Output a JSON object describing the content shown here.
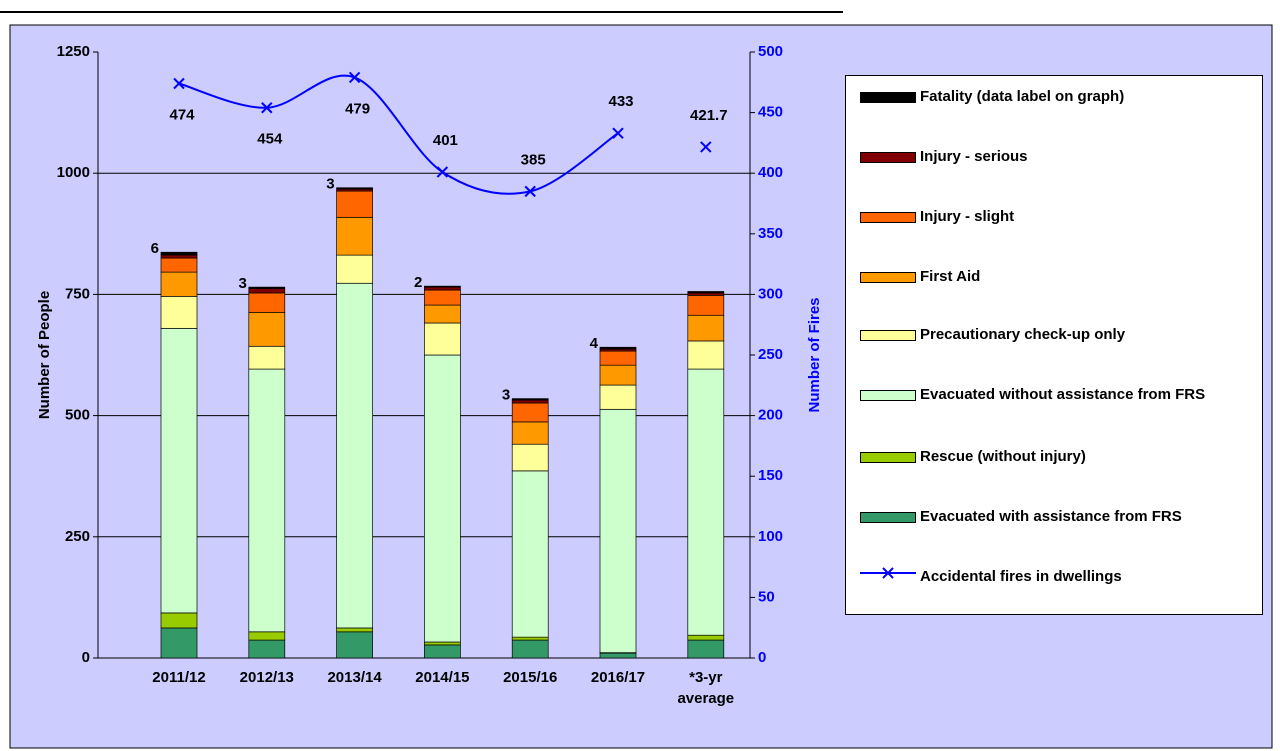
{
  "chart_data": {
    "type": "bar",
    "categories": [
      "2011/12",
      "2012/13",
      "2013/14",
      "2014/15",
      "2015/16",
      "2016/17",
      "*3-yr average"
    ],
    "series": [
      {
        "name": "Fatality (data label on graph)",
        "color": "#000000",
        "values": [
          6,
          3,
          3,
          2,
          3,
          4,
          3
        ],
        "value_labels": [
          "6",
          "3",
          "3",
          "2",
          "3",
          "4",
          null
        ]
      },
      {
        "name": "Injury - serious",
        "color": "#800000",
        "values": [
          6,
          9,
          4,
          6,
          6,
          4,
          5
        ]
      },
      {
        "name": "Injury - slight",
        "color": "#ff6600",
        "values": [
          29,
          40,
          54,
          31,
          39,
          29,
          41
        ]
      },
      {
        "name": "First Aid",
        "color": "#ff9900",
        "values": [
          50,
          70,
          78,
          37,
          46,
          41,
          53
        ]
      },
      {
        "name": "Precautionary check-up only",
        "color": "#ffff99",
        "values": [
          66,
          47,
          58,
          66,
          55,
          50,
          58
        ]
      },
      {
        "name": "Evacuated without assistance from FRS",
        "color": "#ccffcc",
        "values": [
          587,
          542,
          711,
          592,
          343,
          502,
          549
        ]
      },
      {
        "name": "Rescue (without injury)",
        "color": "#99cc00",
        "values": [
          31,
          17,
          8,
          6,
          6,
          1,
          10
        ]
      },
      {
        "name": "Evacuated with assistance from FRS",
        "color": "#339966",
        "values": [
          62,
          37,
          54,
          27,
          37,
          10,
          37
        ]
      },
      {
        "name": "Accidental fires in dwellings",
        "color": "#0000ff",
        "type": "line",
        "axis": "y2",
        "values": [
          474,
          454,
          479,
          401,
          385,
          433,
          421.7
        ]
      }
    ],
    "ylabel": "Number of People",
    "y2label": "Number of Fires",
    "ylim": [
      0,
      1250
    ],
    "yticks": [
      0,
      250,
      500,
      750,
      1000,
      1250
    ],
    "y2lim": [
      0,
      500
    ],
    "y2ticks": [
      0,
      50,
      100,
      150,
      200,
      250,
      300,
      350,
      400,
      450,
      500
    ],
    "grid": true,
    "legend": "right"
  }
}
